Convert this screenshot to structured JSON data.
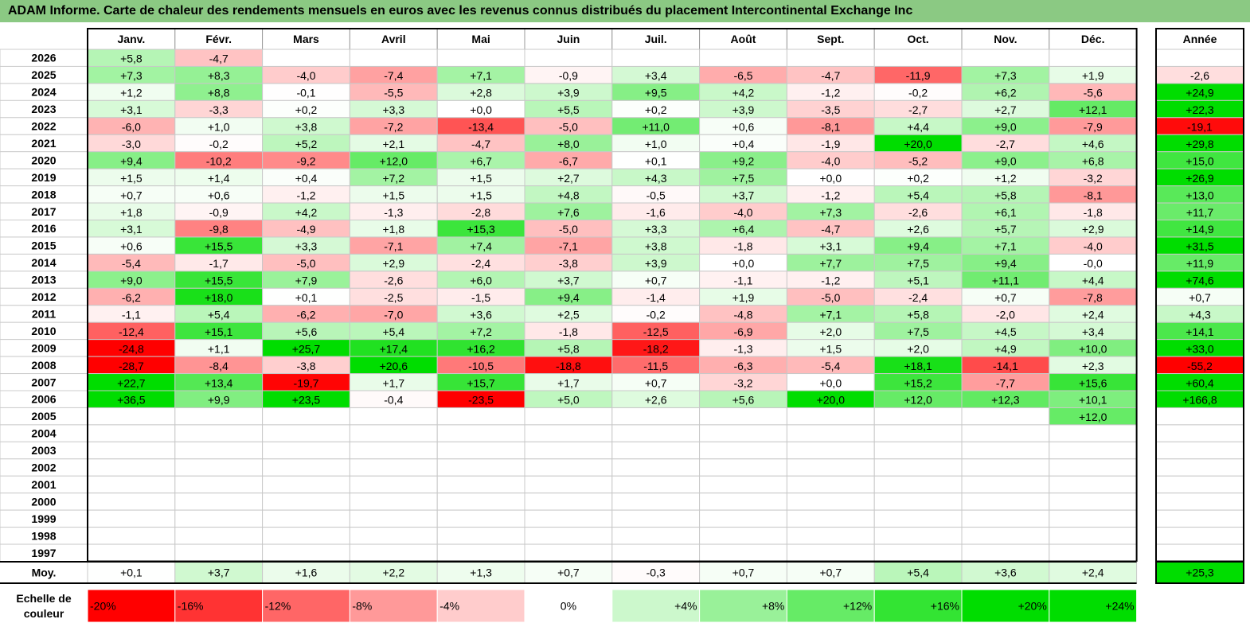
{
  "title": "ADAM Informe. Carte de chaleur des rendements mensuels en euros avec les revenus connus distribués du placement Intercontinental Exchange Inc",
  "colors": {
    "title_bg": "#8bc983",
    "positive_max": "#00dd00",
    "negative_max": "#ff0000",
    "neutral": "#ffffff"
  },
  "chart_data": {
    "type": "heatmap",
    "title": "ADAM Informe. Carte de chaleur des rendements mensuels en euros avec les revenus connus distribués du placement Intercontinental Exchange Inc",
    "columns": [
      "Janv.",
      "Févr.",
      "Mars",
      "Avril",
      "Mai",
      "Juin",
      "Juil.",
      "Août",
      "Sept.",
      "Oct.",
      "Nov.",
      "Déc."
    ],
    "year_header": "Année",
    "rows": [
      {
        "year": "2026",
        "months": [
          "+5,8",
          "-4,7",
          "",
          "",
          "",
          "",
          "",
          "",
          "",
          "",
          "",
          ""
        ],
        "annual": ""
      },
      {
        "year": "2025",
        "months": [
          "+7,3",
          "+8,3",
          "-4,0",
          "-7,4",
          "+7,1",
          "-0,9",
          "+3,4",
          "-6,5",
          "-4,7",
          "-11,9",
          "+7,3",
          "+1,9"
        ],
        "annual": "-2,6"
      },
      {
        "year": "2024",
        "months": [
          "+1,2",
          "+8,8",
          "-0,1",
          "-5,5",
          "+2,8",
          "+3,9",
          "+9,5",
          "+4,2",
          "-1,2",
          "-0,2",
          "+6,2",
          "-5,6"
        ],
        "annual": "+24,9"
      },
      {
        "year": "2023",
        "months": [
          "+3,1",
          "-3,3",
          "+0,2",
          "+3,3",
          "+0,0",
          "+5,5",
          "+0,2",
          "+3,9",
          "-3,5",
          "-2,7",
          "+2,7",
          "+12,1"
        ],
        "annual": "+22,3"
      },
      {
        "year": "2022",
        "months": [
          "-6,0",
          "+1,0",
          "+3,8",
          "-7,2",
          "-13,4",
          "-5,0",
          "+11,0",
          "+0,6",
          "-8,1",
          "+4,4",
          "+9,0",
          "-7,9"
        ],
        "annual": "-19,1"
      },
      {
        "year": "2021",
        "months": [
          "-3,0",
          "-0,2",
          "+5,2",
          "+2,1",
          "-4,7",
          "+8,0",
          "+1,0",
          "+0,4",
          "-1,9",
          "+20,0",
          "-2,7",
          "+4,6"
        ],
        "annual": "+29,8"
      },
      {
        "year": "2020",
        "months": [
          "+9,4",
          "-10,2",
          "-9,2",
          "+12,0",
          "+6,7",
          "-6,7",
          "+0,1",
          "+9,2",
          "-4,0",
          "-5,2",
          "+9,0",
          "+6,8"
        ],
        "annual": "+15,0"
      },
      {
        "year": "2019",
        "months": [
          "+1,5",
          "+1,4",
          "+0,4",
          "+7,2",
          "+1,5",
          "+2,7",
          "+4,3",
          "+7,5",
          "+0,0",
          "+0,2",
          "+1,2",
          "-3,2"
        ],
        "annual": "+26,9"
      },
      {
        "year": "2018",
        "months": [
          "+0,7",
          "+0,6",
          "-1,2",
          "+1,5",
          "+1,5",
          "+4,8",
          "-0,5",
          "+3,7",
          "-1,2",
          "+5,4",
          "+5,8",
          "-8,1"
        ],
        "annual": "+13,0"
      },
      {
        "year": "2017",
        "months": [
          "+1,8",
          "-0,9",
          "+4,2",
          "-1,3",
          "-2,8",
          "+7,6",
          "-1,6",
          "-4,0",
          "+7,3",
          "-2,6",
          "+6,1",
          "-1,8"
        ],
        "annual": "+11,7"
      },
      {
        "year": "2016",
        "months": [
          "+3,1",
          "-9,8",
          "-4,9",
          "+1,8",
          "+15,3",
          "-5,0",
          "+3,3",
          "+6,4",
          "-4,7",
          "+2,6",
          "+5,7",
          "+2,9"
        ],
        "annual": "+14,9"
      },
      {
        "year": "2015",
        "months": [
          "+0,6",
          "+15,5",
          "+3,3",
          "-7,1",
          "+7,4",
          "-7,1",
          "+3,8",
          "-1,8",
          "+3,1",
          "+9,4",
          "+7,1",
          "-4,0"
        ],
        "annual": "+31,5"
      },
      {
        "year": "2014",
        "months": [
          "-5,4",
          "-1,7",
          "-5,0",
          "+2,9",
          "-2,4",
          "-3,8",
          "+3,9",
          "+0,0",
          "+7,7",
          "+7,5",
          "+9,4",
          "-0,0"
        ],
        "annual": "+11,9"
      },
      {
        "year": "2013",
        "months": [
          "+9,0",
          "+15,5",
          "+7,9",
          "-2,6",
          "+6,0",
          "+3,7",
          "+0,7",
          "-1,1",
          "-1,2",
          "+5,1",
          "+11,1",
          "+4,4"
        ],
        "annual": "+74,6"
      },
      {
        "year": "2012",
        "months": [
          "-6,2",
          "+18,0",
          "+0,1",
          "-2,5",
          "-1,5",
          "+9,4",
          "-1,4",
          "+1,9",
          "-5,0",
          "-2,4",
          "+0,7",
          "-7,8"
        ],
        "annual": "+0,7"
      },
      {
        "year": "2011",
        "months": [
          "-1,1",
          "+5,4",
          "-6,2",
          "-7,0",
          "+3,6",
          "+2,5",
          "-0,2",
          "-4,8",
          "+7,1",
          "+5,8",
          "-2,0",
          "+2,4"
        ],
        "annual": "+4,3"
      },
      {
        "year": "2010",
        "months": [
          "-12,4",
          "+15,1",
          "+5,6",
          "+5,4",
          "+7,2",
          "-1,8",
          "-12,5",
          "-6,9",
          "+2,0",
          "+7,5",
          "+4,5",
          "+3,4"
        ],
        "annual": "+14,1"
      },
      {
        "year": "2009",
        "months": [
          "-24,8",
          "+1,1",
          "+25,7",
          "+17,4",
          "+16,2",
          "+5,8",
          "-18,2",
          "-1,3",
          "+1,5",
          "+2,0",
          "+4,9",
          "+10,0"
        ],
        "annual": "+33,0"
      },
      {
        "year": "2008",
        "months": [
          "-28,7",
          "-8,4",
          "-3,8",
          "+20,6",
          "-10,5",
          "-18,8",
          "-11,5",
          "-6,3",
          "-5,4",
          "+18,1",
          "-14,1",
          "+2,3"
        ],
        "annual": "-55,2"
      },
      {
        "year": "2007",
        "months": [
          "+22,7",
          "+13,4",
          "-19,7",
          "+1,7",
          "+15,7",
          "+1,7",
          "+0,7",
          "-3,2",
          "+0,0",
          "+15,2",
          "-7,7",
          "+15,6"
        ],
        "annual": "+60,4"
      },
      {
        "year": "2006",
        "months": [
          "+36,5",
          "+9,9",
          "+23,5",
          "-0,4",
          "-23,5",
          "+5,0",
          "+2,6",
          "+5,6",
          "+20,0",
          "+12,0",
          "+12,3",
          "+10,1"
        ],
        "annual": "+166,8"
      },
      {
        "year": "2005",
        "months": [
          "",
          "",
          "",
          "",
          "",
          "",
          "",
          "",
          "",
          "",
          "",
          "+12,0"
        ],
        "annual": ""
      },
      {
        "year": "2004",
        "months": [
          "",
          "",
          "",
          "",
          "",
          "",
          "",
          "",
          "",
          "",
          "",
          ""
        ],
        "annual": ""
      },
      {
        "year": "2003",
        "months": [
          "",
          "",
          "",
          "",
          "",
          "",
          "",
          "",
          "",
          "",
          "",
          ""
        ],
        "annual": ""
      },
      {
        "year": "2002",
        "months": [
          "",
          "",
          "",
          "",
          "",
          "",
          "",
          "",
          "",
          "",
          "",
          ""
        ],
        "annual": ""
      },
      {
        "year": "2001",
        "months": [
          "",
          "",
          "",
          "",
          "",
          "",
          "",
          "",
          "",
          "",
          "",
          ""
        ],
        "annual": ""
      },
      {
        "year": "2000",
        "months": [
          "",
          "",
          "",
          "",
          "",
          "",
          "",
          "",
          "",
          "",
          "",
          ""
        ],
        "annual": ""
      },
      {
        "year": "1999",
        "months": [
          "",
          "",
          "",
          "",
          "",
          "",
          "",
          "",
          "",
          "",
          "",
          ""
        ],
        "annual": ""
      },
      {
        "year": "1998",
        "months": [
          "",
          "",
          "",
          "",
          "",
          "",
          "",
          "",
          "",
          "",
          "",
          ""
        ],
        "annual": ""
      },
      {
        "year": "1997",
        "months": [
          "",
          "",
          "",
          "",
          "",
          "",
          "",
          "",
          "",
          "",
          "",
          ""
        ],
        "annual": ""
      }
    ],
    "average": {
      "label": "Moy.",
      "months": [
        "+0,1",
        "+3,7",
        "+1,6",
        "+2,2",
        "+1,3",
        "+0,7",
        "-0,3",
        "+0,7",
        "+0,7",
        "+5,4",
        "+3,6",
        "+2,4"
      ],
      "annual": "+25,3"
    },
    "scale": {
      "label_line1": "Echelle de",
      "label_line2": "couleur",
      "items": [
        "-20%",
        "-16%",
        "-12%",
        "-8%",
        "-4%",
        "0%",
        "+4%",
        "+8%",
        "+12%",
        "+16%",
        "+20%",
        "+24%"
      ],
      "values": [
        -20,
        -16,
        -12,
        -8,
        -4,
        0,
        4,
        8,
        12,
        16,
        20,
        24
      ]
    },
    "color_range": {
      "min": -20,
      "max": 20
    }
  }
}
